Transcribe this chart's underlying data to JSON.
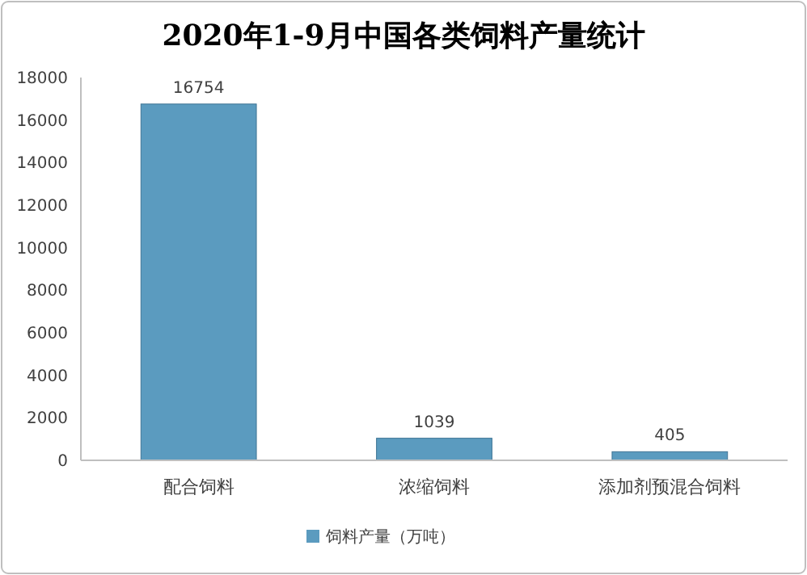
{
  "chart_data": {
    "type": "bar",
    "title": "2020年1-9月中国各类饲料产量统计",
    "categories": [
      "配合饲料",
      "浓缩饲料",
      "添加剂预混合饲料"
    ],
    "series": [
      {
        "name": "饲料产量（万吨）",
        "color": "#5b9bbf",
        "values": [
          16754,
          1039,
          405
        ]
      }
    ],
    "ylim": [
      0,
      18000
    ],
    "yticks": [
      0,
      2000,
      4000,
      6000,
      8000,
      10000,
      12000,
      14000,
      16000,
      18000
    ],
    "data_labels": true,
    "legend": "bottom",
    "grid": false
  }
}
